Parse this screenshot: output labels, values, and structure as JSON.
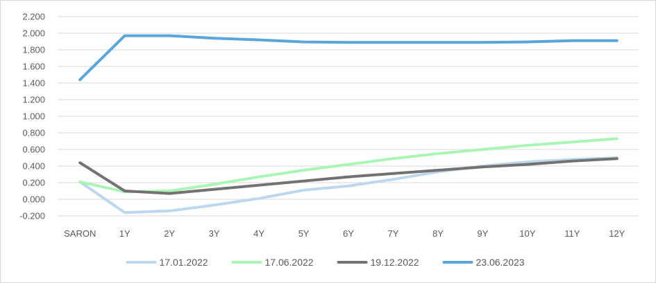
{
  "chart_data": {
    "type": "line",
    "categories": [
      "SARON",
      "1Y",
      "2Y",
      "3Y",
      "4Y",
      "5Y",
      "6Y",
      "7Y",
      "8Y",
      "9Y",
      "10Y",
      "11Y",
      "12Y"
    ],
    "ylim": [
      -0.2,
      2.2
    ],
    "yticks": [
      -0.2,
      0.0,
      0.2,
      0.4,
      0.6,
      0.8,
      1.0,
      1.2,
      1.4,
      1.6,
      1.8,
      2.0,
      2.2
    ],
    "ytick_labels": [
      "-0.200",
      "0.000",
      "0.200",
      "0.400",
      "0.600",
      "0.800",
      "1.000",
      "1.200",
      "1.400",
      "1.600",
      "1.800",
      "2.000",
      "2.200"
    ],
    "grid": true,
    "legend_position": "bottom",
    "series": [
      {
        "name": "17.01.2022",
        "color": "#bdd7ee",
        "values": [
          0.21,
          -0.16,
          -0.14,
          -0.07,
          0.01,
          0.11,
          0.16,
          0.24,
          0.33,
          0.4,
          0.45,
          0.48,
          0.5
        ]
      },
      {
        "name": "17.06.2022",
        "color": "#a9f5b5",
        "values": [
          0.21,
          0.09,
          0.1,
          0.18,
          0.27,
          0.35,
          0.42,
          0.49,
          0.55,
          0.6,
          0.65,
          0.69,
          0.73
        ]
      },
      {
        "name": "19.12.2022",
        "color": "#767171",
        "values": [
          0.44,
          0.1,
          0.07,
          0.12,
          0.17,
          0.22,
          0.27,
          0.31,
          0.35,
          0.39,
          0.42,
          0.46,
          0.49
        ]
      },
      {
        "name": "23.06.2023",
        "color": "#5aa5dc",
        "values": [
          1.44,
          1.97,
          1.97,
          1.94,
          1.92,
          1.895,
          1.89,
          1.89,
          1.89,
          1.89,
          1.895,
          1.91,
          1.91
        ]
      }
    ]
  }
}
